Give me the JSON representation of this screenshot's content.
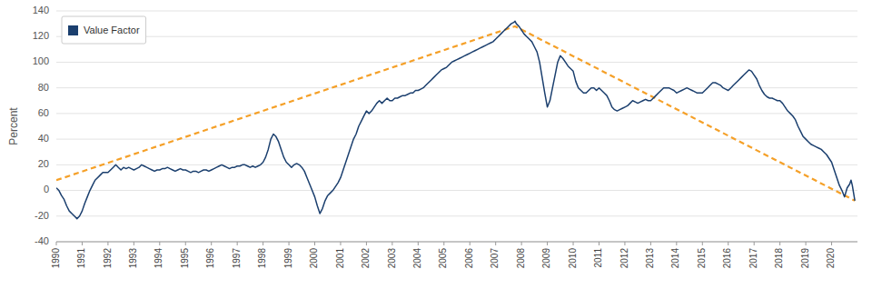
{
  "chart_data": {
    "type": "line",
    "ylabel": "Percent",
    "xlim": [
      1990,
      2021
    ],
    "xticks": [
      1990,
      1991,
      1992,
      1993,
      1994,
      1995,
      1996,
      1997,
      1998,
      1999,
      2000,
      2001,
      2002,
      2003,
      2004,
      2005,
      2006,
      2007,
      2008,
      2009,
      2010,
      2011,
      2012,
      2013,
      2014,
      2015,
      2016,
      2017,
      2018,
      2019,
      2020
    ],
    "ylim": [
      -40,
      140
    ],
    "yticks": [
      -40,
      -20,
      0,
      20,
      40,
      60,
      80,
      100,
      120,
      140
    ],
    "grid": true,
    "legend": "upper left",
    "series": [
      {
        "name": "Value Factor",
        "color": "#1b3f6e",
        "x": [
          1990.0,
          1990.1,
          1990.2,
          1990.3,
          1990.4,
          1990.5,
          1990.6,
          1990.7,
          1990.8,
          1990.9,
          1991.0,
          1991.1,
          1991.2,
          1991.3,
          1991.4,
          1991.5,
          1991.6,
          1991.7,
          1991.8,
          1991.9,
          1992.0,
          1992.1,
          1992.2,
          1992.3,
          1992.4,
          1992.5,
          1992.6,
          1992.7,
          1992.8,
          1992.9,
          1993.0,
          1993.1,
          1993.2,
          1993.3,
          1993.4,
          1993.5,
          1993.6,
          1993.7,
          1993.8,
          1993.9,
          1994.0,
          1994.1,
          1994.2,
          1994.3,
          1994.4,
          1994.5,
          1994.6,
          1994.7,
          1994.8,
          1994.9,
          1995.0,
          1995.1,
          1995.2,
          1995.3,
          1995.4,
          1995.5,
          1995.6,
          1995.7,
          1995.8,
          1995.9,
          1996.0,
          1996.1,
          1996.2,
          1996.3,
          1996.4,
          1996.5,
          1996.6,
          1996.7,
          1996.8,
          1996.9,
          1997.0,
          1997.1,
          1997.2,
          1997.3,
          1997.4,
          1997.5,
          1997.6,
          1997.7,
          1997.8,
          1997.9,
          1998.0,
          1998.1,
          1998.2,
          1998.3,
          1998.4,
          1998.5,
          1998.6,
          1998.7,
          1998.8,
          1998.9,
          1999.0,
          1999.1,
          1999.2,
          1999.3,
          1999.4,
          1999.5,
          1999.6,
          1999.7,
          1999.8,
          1999.9,
          2000.0,
          2000.1,
          2000.2,
          2000.3,
          2000.4,
          2000.5,
          2000.6,
          2000.7,
          2000.8,
          2000.9,
          2001.0,
          2001.1,
          2001.2,
          2001.3,
          2001.4,
          2001.5,
          2001.6,
          2001.7,
          2001.8,
          2001.9,
          2002.0,
          2002.1,
          2002.2,
          2002.3,
          2002.4,
          2002.5,
          2002.6,
          2002.7,
          2002.8,
          2002.9,
          2003.0,
          2003.1,
          2003.2,
          2003.3,
          2003.4,
          2003.5,
          2003.6,
          2003.7,
          2003.8,
          2003.9,
          2004.0,
          2004.1,
          2004.2,
          2004.3,
          2004.4,
          2004.5,
          2004.6,
          2004.7,
          2004.8,
          2004.9,
          2005.0,
          2005.1,
          2005.2,
          2005.3,
          2005.4,
          2005.5,
          2005.6,
          2005.7,
          2005.8,
          2005.9,
          2006.0,
          2006.1,
          2006.2,
          2006.3,
          2006.4,
          2006.5,
          2006.6,
          2006.7,
          2006.8,
          2006.9,
          2007.0,
          2007.1,
          2007.2,
          2007.3,
          2007.4,
          2007.5,
          2007.6,
          2007.7,
          2007.75,
          2007.8,
          2007.9,
          2008.0,
          2008.1,
          2008.2,
          2008.3,
          2008.4,
          2008.5,
          2008.6,
          2008.7,
          2008.8,
          2008.9,
          2009.0,
          2009.1,
          2009.2,
          2009.3,
          2009.4,
          2009.5,
          2009.6,
          2009.7,
          2009.8,
          2009.9,
          2010.0,
          2010.1,
          2010.2,
          2010.3,
          2010.4,
          2010.5,
          2010.6,
          2010.7,
          2010.8,
          2010.9,
          2011.0,
          2011.1,
          2011.2,
          2011.3,
          2011.4,
          2011.5,
          2011.6,
          2011.7,
          2011.8,
          2011.9,
          2012.0,
          2012.1,
          2012.2,
          2012.3,
          2012.4,
          2012.5,
          2012.6,
          2012.7,
          2012.8,
          2012.9,
          2013.0,
          2013.1,
          2013.2,
          2013.3,
          2013.4,
          2013.5,
          2013.6,
          2013.7,
          2013.8,
          2013.9,
          2014.0,
          2014.1,
          2014.2,
          2014.3,
          2014.4,
          2014.5,
          2014.6,
          2014.7,
          2014.8,
          2014.9,
          2015.0,
          2015.1,
          2015.2,
          2015.3,
          2015.4,
          2015.5,
          2015.6,
          2015.7,
          2015.8,
          2015.9,
          2016.0,
          2016.1,
          2016.2,
          2016.3,
          2016.4,
          2016.5,
          2016.6,
          2016.7,
          2016.8,
          2016.9,
          2017.0,
          2017.1,
          2017.2,
          2017.3,
          2017.4,
          2017.5,
          2017.6,
          2017.7,
          2017.8,
          2017.9,
          2018.0,
          2018.1,
          2018.2,
          2018.3,
          2018.4,
          2018.5,
          2018.6,
          2018.7,
          2018.8,
          2018.9,
          2019.0,
          2019.1,
          2019.2,
          2019.3,
          2019.4,
          2019.5,
          2019.6,
          2019.7,
          2019.8,
          2019.9,
          2020.0,
          2020.1,
          2020.2,
          2020.3,
          2020.4,
          2020.5,
          2020.6,
          2020.7,
          2020.75,
          2020.8,
          2020.9
        ],
        "values": [
          2.0,
          0.0,
          -4.0,
          -7.0,
          -12.0,
          -16.0,
          -18.0,
          -20.0,
          -22.0,
          -20.0,
          -16.0,
          -10.0,
          -5.0,
          0.0,
          4.0,
          8.0,
          10.0,
          12.0,
          14.0,
          14.0,
          14.0,
          16.0,
          18.0,
          20.0,
          18.0,
          16.0,
          18.0,
          17.0,
          18.0,
          17.0,
          16.0,
          17.0,
          18.0,
          20.0,
          19.0,
          18.0,
          17.0,
          16.0,
          15.0,
          16.0,
          16.0,
          17.0,
          17.0,
          18.0,
          17.0,
          16.0,
          15.0,
          16.0,
          17.0,
          16.0,
          16.0,
          15.0,
          14.0,
          15.0,
          15.0,
          14.0,
          15.0,
          16.0,
          16.0,
          15.0,
          16.0,
          17.0,
          18.0,
          19.0,
          20.0,
          19.0,
          18.0,
          17.0,
          18.0,
          18.0,
          19.0,
          19.0,
          20.0,
          20.0,
          19.0,
          18.0,
          19.0,
          18.0,
          19.0,
          20.0,
          22.0,
          26.0,
          32.0,
          40.0,
          44.0,
          42.0,
          38.0,
          32.0,
          26.0,
          22.0,
          20.0,
          18.0,
          20.0,
          21.0,
          20.0,
          18.0,
          15.0,
          10.0,
          5.0,
          0.0,
          -5.0,
          -12.0,
          -18.0,
          -14.0,
          -8.0,
          -4.0,
          -2.0,
          0.0,
          3.0,
          6.0,
          10.0,
          16.0,
          22.0,
          28.0,
          34.0,
          40.0,
          44.0,
          50.0,
          54.0,
          58.0,
          62.0,
          60.0,
          62.0,
          65.0,
          68.0,
          70.0,
          68.0,
          70.0,
          72.0,
          70.0,
          70.0,
          72.0,
          72.0,
          73.0,
          74.0,
          74.0,
          75.0,
          76.0,
          76.0,
          78.0,
          78.0,
          79.0,
          80.0,
          82.0,
          84.0,
          86.0,
          88.0,
          90.0,
          92.0,
          94.0,
          95.0,
          96.0,
          98.0,
          100.0,
          101.0,
          102.0,
          103.0,
          104.0,
          105.0,
          106.0,
          107.0,
          108.0,
          109.0,
          110.0,
          111.0,
          112.0,
          113.0,
          114.0,
          115.0,
          116.0,
          118.0,
          120.0,
          122.0,
          124.0,
          126.0,
          128.0,
          130.0,
          131.0,
          132.0,
          130.0,
          128.0,
          125.0,
          122.0,
          120.0,
          118.0,
          116.0,
          112.0,
          108.0,
          100.0,
          88.0,
          76.0,
          65.0,
          70.0,
          80.0,
          90.0,
          100.0,
          105.0,
          103.0,
          100.0,
          97.0,
          95.0,
          93.0,
          85.0,
          80.0,
          78.0,
          76.0,
          76.0,
          78.0,
          80.0,
          80.0,
          78.0,
          80.0,
          78.0,
          76.0,
          74.0,
          70.0,
          65.0,
          63.0,
          62.0,
          63.0,
          64.0,
          65.0,
          66.0,
          68.0,
          70.0,
          69.0,
          68.0,
          69.0,
          70.0,
          71.0,
          70.0,
          70.0,
          72.0,
          74.0,
          76.0,
          78.0,
          80.0,
          80.0,
          80.0,
          79.0,
          78.0,
          76.0,
          77.0,
          78.0,
          79.0,
          80.0,
          79.0,
          78.0,
          77.0,
          76.0,
          76.0,
          76.0,
          78.0,
          80.0,
          82.0,
          84.0,
          84.0,
          83.0,
          82.0,
          80.0,
          79.0,
          78.0,
          80.0,
          82.0,
          84.0,
          86.0,
          88.0,
          90.0,
          92.0,
          94.0,
          93.0,
          90.0,
          87.0,
          82.0,
          78.0,
          75.0,
          73.0,
          72.0,
          72.0,
          71.0,
          70.0,
          70.0,
          68.0,
          65.0,
          62.0,
          60.0,
          58.0,
          55.0,
          50.0,
          46.0,
          42.0,
          40.0,
          38.0,
          36.0,
          35.0,
          34.0,
          33.0,
          32.0,
          30.0,
          28.0,
          25.0,
          22.0,
          16.0,
          10.0,
          4.0,
          0.0,
          -5.0,
          2.0,
          5.0,
          8.0,
          4.0,
          -8.0
        ]
      },
      {
        "color": "#f5a028",
        "line_style": "dashed",
        "x": [
          1990.0,
          2007.75,
          2020.9
        ],
        "values": [
          8.0,
          128.0,
          -8.0
        ]
      }
    ]
  }
}
